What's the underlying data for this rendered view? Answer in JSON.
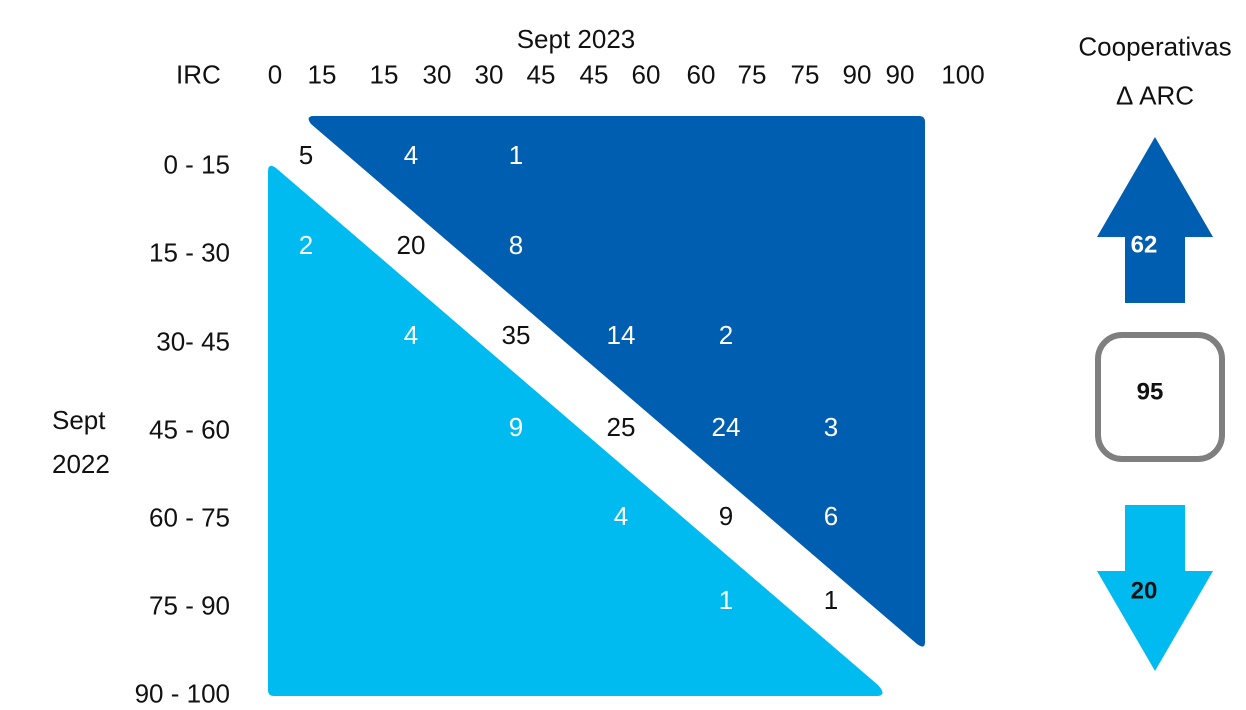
{
  "title_top": "Sept 2023",
  "irc_label": "IRC",
  "columns": [
    "0",
    "15",
    "15",
    "30",
    "30",
    "45",
    "45",
    "60",
    "60",
    "75",
    "75",
    "90",
    "90",
    "90",
    "100"
  ],
  "rows": [
    "0 - 15",
    "15 - 30",
    "30- 45",
    "45 - 60",
    "60 - 75",
    "75 - 90",
    "90 - 100"
  ],
  "side_label": {
    "line1": "Sept",
    "line2": "2022"
  },
  "right_panel": {
    "title_line1": "Cooperativas",
    "title_line2": "Δ ARC",
    "up_value": "62",
    "center_value": "95",
    "down_value": "20"
  },
  "cells": {
    "upper": [
      {
        "row": 0,
        "col": 1,
        "value": "4"
      },
      {
        "row": 0,
        "col": 2,
        "value": "1"
      },
      {
        "row": 1,
        "col": 2,
        "value": "8"
      },
      {
        "row": 2,
        "col": 3,
        "value": "14"
      },
      {
        "row": 2,
        "col": 4,
        "value": "2"
      },
      {
        "row": 3,
        "col": 4,
        "value": "24"
      },
      {
        "row": 3,
        "col": 5,
        "value": "3"
      },
      {
        "row": 4,
        "col": 5,
        "value": "6"
      }
    ],
    "diagonal": [
      {
        "row": 0,
        "col": 0,
        "value": "5"
      },
      {
        "row": 1,
        "col": 1,
        "value": "20"
      },
      {
        "row": 2,
        "col": 2,
        "value": "35"
      },
      {
        "row": 3,
        "col": 3,
        "value": "25"
      },
      {
        "row": 4,
        "col": 4,
        "value": "9"
      },
      {
        "row": 5,
        "col": 5,
        "value": "1"
      }
    ],
    "lower": [
      {
        "row": 1,
        "col": 0,
        "value": "2"
      },
      {
        "row": 2,
        "col": 1,
        "value": "4"
      },
      {
        "row": 3,
        "col": 2,
        "value": "9"
      },
      {
        "row": 4,
        "col": 3,
        "value": "4"
      },
      {
        "row": 5,
        "col": 4,
        "value": "1"
      }
    ]
  },
  "colors": {
    "upper_triangle": "#005EB0",
    "lower_triangle": "#00BBF0",
    "box_border": "#7F7F7F",
    "text": "#111111",
    "light_text": "#FFFFFF"
  }
}
